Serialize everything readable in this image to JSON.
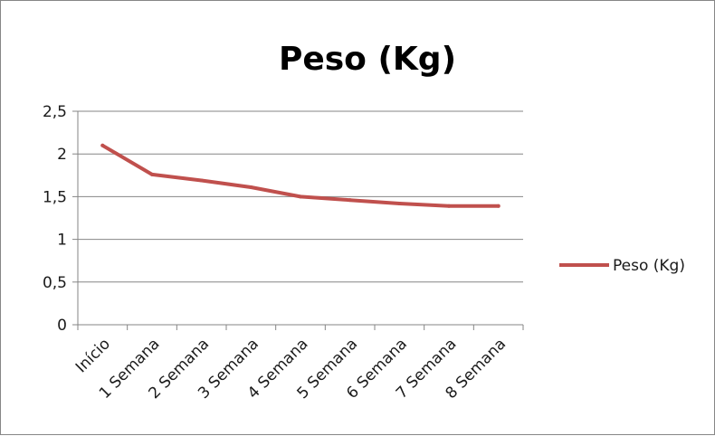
{
  "chart_data": {
    "type": "line",
    "title": "Peso (Kg)",
    "xlabel": "",
    "ylabel": "",
    "categories": [
      "Início",
      "1 Semana",
      "2 Semana",
      "3 Semana",
      "4 Semana",
      "5 Semana",
      "6 Semana",
      "7 Semana",
      "8 Semana"
    ],
    "series": [
      {
        "name": "Peso (Kg)",
        "color": "#C0504D",
        "values": [
          2.1,
          1.76,
          1.69,
          1.61,
          1.5,
          1.46,
          1.42,
          1.39,
          1.39
        ]
      }
    ],
    "ylim": [
      0,
      2.5
    ],
    "yticks": [
      "0",
      "0,5",
      "1",
      "1,5",
      "2",
      "2,5"
    ],
    "ytick_values": [
      0,
      0.5,
      1,
      1.5,
      2,
      2.5
    ],
    "grid": "horizontal",
    "legend_position": "right"
  }
}
